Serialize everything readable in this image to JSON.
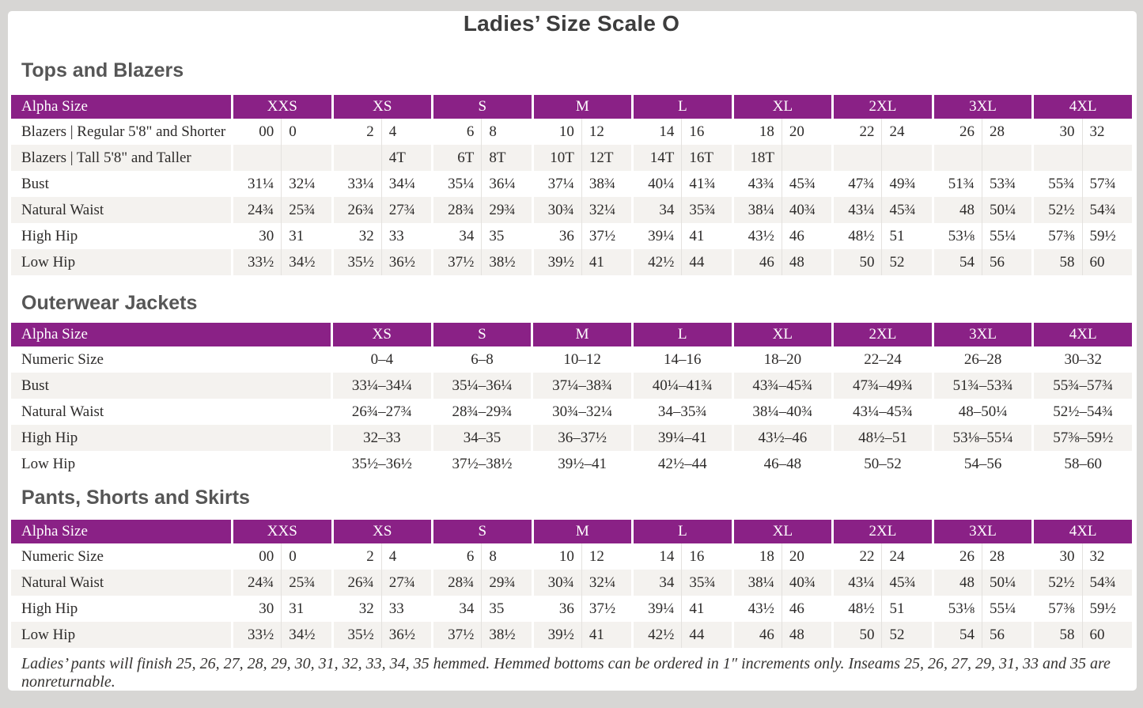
{
  "page": {
    "title": "Ladies’ Size Scale O",
    "footnote": "Ladies’ pants will finish 25, 26, 27, 28, 29, 30, 31, 32, 33, 34, 35 hemmed. Hemmed bottoms can be ordered in 1″ increments only. Inseams 25, 26, 27, 29, 31, 33 and 35 are nonreturnable."
  },
  "colors": {
    "header_bg": "#8a2186",
    "header_text": "#ffffff",
    "row_stripe": "#f4f2ef",
    "body_text": "#2d2b2a",
    "heading_text": "#565656",
    "frame_gray": "#d7d6d4"
  },
  "tables": [
    {
      "section_title": "Tops and Blazers",
      "corner_label": "Alpha Size",
      "paired_columns": true,
      "sizes": [
        "XXS",
        "XS",
        "S",
        "M",
        "L",
        "XL",
        "2XL",
        "3XL",
        "4XL"
      ],
      "rows": [
        {
          "label": "Blazers  |  Regular 5'8\" and Shorter",
          "values": [
            [
              "00",
              "0"
            ],
            [
              "2",
              "4"
            ],
            [
              "6",
              "8"
            ],
            [
              "10",
              "12"
            ],
            [
              "14",
              "16"
            ],
            [
              "18",
              "20"
            ],
            [
              "22",
              "24"
            ],
            [
              "26",
              "28"
            ],
            [
              "30",
              "32"
            ]
          ]
        },
        {
          "label": "Blazers  |  Tall 5'8\" and Taller",
          "values": [
            [
              "",
              ""
            ],
            [
              "",
              "4T"
            ],
            [
              "6T",
              "8T"
            ],
            [
              "10T",
              "12T"
            ],
            [
              "14T",
              "16T"
            ],
            [
              "18T",
              ""
            ],
            [
              "",
              ""
            ],
            [
              "",
              ""
            ],
            [
              "",
              ""
            ]
          ]
        },
        {
          "label": "Bust",
          "values": [
            [
              "31¼",
              "32¼"
            ],
            [
              "33¼",
              "34¼"
            ],
            [
              "35¼",
              "36¼"
            ],
            [
              "37¼",
              "38¾"
            ],
            [
              "40¼",
              "41¾"
            ],
            [
              "43¾",
              "45¾"
            ],
            [
              "47¾",
              "49¾"
            ],
            [
              "51¾",
              "53¾"
            ],
            [
              "55¾",
              "57¾"
            ]
          ]
        },
        {
          "label": "Natural Waist",
          "values": [
            [
              "24¾",
              "25¾"
            ],
            [
              "26¾",
              "27¾"
            ],
            [
              "28¾",
              "29¾"
            ],
            [
              "30¾",
              "32¼"
            ],
            [
              "34",
              "35¾"
            ],
            [
              "38¼",
              "40¾"
            ],
            [
              "43¼",
              "45¾"
            ],
            [
              "48",
              "50¼"
            ],
            [
              "52½",
              "54¾"
            ]
          ]
        },
        {
          "label": "High Hip",
          "values": [
            [
              "30",
              "31"
            ],
            [
              "32",
              "33"
            ],
            [
              "34",
              "35"
            ],
            [
              "36",
              "37½"
            ],
            [
              "39¼",
              "41"
            ],
            [
              "43½",
              "46"
            ],
            [
              "48½",
              "51"
            ],
            [
              "53⅛",
              "55¼"
            ],
            [
              "57⅜",
              "59½"
            ]
          ]
        },
        {
          "label": "Low Hip",
          "values": [
            [
              "33½",
              "34½"
            ],
            [
              "35½",
              "36½"
            ],
            [
              "37½",
              "38½"
            ],
            [
              "39½",
              "41"
            ],
            [
              "42½",
              "44"
            ],
            [
              "46",
              "48"
            ],
            [
              "50",
              "52"
            ],
            [
              "54",
              "56"
            ],
            [
              "58",
              "60"
            ]
          ]
        }
      ]
    },
    {
      "section_title": "Outerwear Jackets",
      "corner_label": "Alpha Size",
      "paired_columns": false,
      "sizes": [
        "XS",
        "S",
        "M",
        "L",
        "XL",
        "2XL",
        "3XL",
        "4XL"
      ],
      "rows": [
        {
          "label": "Numeric Size",
          "values": [
            "0–4",
            "6–8",
            "10–12",
            "14–16",
            "18–20",
            "22–24",
            "26–28",
            "30–32"
          ]
        },
        {
          "label": "Bust",
          "values": [
            "33¼–34¼",
            "35¼–36¼",
            "37¼–38¾",
            "40¼–41¾",
            "43¾–45¾",
            "47¾–49¾",
            "51¾–53¾",
            "55¾–57¾"
          ]
        },
        {
          "label": "Natural Waist",
          "values": [
            "26¾–27¾",
            "28¾–29¾",
            "30¾–32¼",
            "34–35¾",
            "38¼–40¾",
            "43¼–45¾",
            "48–50¼",
            "52½–54¾"
          ]
        },
        {
          "label": "High Hip",
          "values": [
            "32–33",
            "34–35",
            "36–37½",
            "39¼–41",
            "43½–46",
            "48½–51",
            "53⅛–55¼",
            "57⅜–59½"
          ]
        },
        {
          "label": "Low Hip",
          "values": [
            "35½–36½",
            "37½–38½",
            "39½–41",
            "42½–44",
            "46–48",
            "50–52",
            "54–56",
            "58–60"
          ]
        }
      ]
    },
    {
      "section_title": "Pants, Shorts and Skirts",
      "corner_label": "Alpha Size",
      "paired_columns": true,
      "sizes": [
        "XXS",
        "XS",
        "S",
        "M",
        "L",
        "XL",
        "2XL",
        "3XL",
        "4XL"
      ],
      "rows": [
        {
          "label": "Numeric Size",
          "values": [
            [
              "00",
              "0"
            ],
            [
              "2",
              "4"
            ],
            [
              "6",
              "8"
            ],
            [
              "10",
              "12"
            ],
            [
              "14",
              "16"
            ],
            [
              "18",
              "20"
            ],
            [
              "22",
              "24"
            ],
            [
              "26",
              "28"
            ],
            [
              "30",
              "32"
            ]
          ]
        },
        {
          "label": "Natural Waist",
          "values": [
            [
              "24¾",
              "25¾"
            ],
            [
              "26¾",
              "27¾"
            ],
            [
              "28¾",
              "29¾"
            ],
            [
              "30¾",
              "32¼"
            ],
            [
              "34",
              "35¾"
            ],
            [
              "38¼",
              "40¾"
            ],
            [
              "43¼",
              "45¾"
            ],
            [
              "48",
              "50¼"
            ],
            [
              "52½",
              "54¾"
            ]
          ]
        },
        {
          "label": "High Hip",
          "values": [
            [
              "30",
              "31"
            ],
            [
              "32",
              "33"
            ],
            [
              "34",
              "35"
            ],
            [
              "36",
              "37½"
            ],
            [
              "39¼",
              "41"
            ],
            [
              "43½",
              "46"
            ],
            [
              "48½",
              "51"
            ],
            [
              "53⅛",
              "55¼"
            ],
            [
              "57⅜",
              "59½"
            ]
          ]
        },
        {
          "label": "Low Hip",
          "values": [
            [
              "33½",
              "34½"
            ],
            [
              "35½",
              "36½"
            ],
            [
              "37½",
              "38½"
            ],
            [
              "39½",
              "41"
            ],
            [
              "42½",
              "44"
            ],
            [
              "46",
              "48"
            ],
            [
              "50",
              "52"
            ],
            [
              "54",
              "56"
            ],
            [
              "58",
              "60"
            ]
          ]
        }
      ]
    }
  ]
}
